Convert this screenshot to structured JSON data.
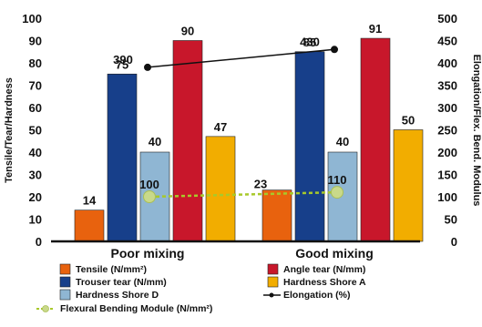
{
  "chart_data": {
    "type": "bar",
    "categories": [
      "Poor mixing",
      "Good mixing"
    ],
    "series": [
      {
        "name": "Tensile (N/mm²)",
        "values": [
          14,
          23
        ],
        "axis": "left",
        "color": "#e8620e"
      },
      {
        "name": "Trouser tear (N/mm)",
        "values": [
          75,
          85
        ],
        "axis": "left",
        "color": "#173f8a"
      },
      {
        "name": "Hardness Shore D",
        "values": [
          40,
          40
        ],
        "axis": "left",
        "color": "#8fb6d3"
      },
      {
        "name": "Angle tear (N/mm)",
        "values": [
          90,
          91
        ],
        "axis": "left",
        "color": "#c8172b"
      },
      {
        "name": "Hardness Shore A",
        "values": [
          47,
          50
        ],
        "axis": "left",
        "color": "#f2ad00"
      }
    ],
    "overlay_series": [
      {
        "name": "Elongation (%)",
        "type": "line",
        "values": [
          390,
          430
        ],
        "axis": "right",
        "color": "#111111"
      },
      {
        "name": "Flexural Bending Module (N/mm²)",
        "type": "line",
        "style": "dashed",
        "values": [
          100,
          110
        ],
        "axis": "right",
        "color": "#a8c92a",
        "marker_color": "#c9d98a"
      }
    ],
    "ylabel": "Tensile/Tear/Hardness",
    "y2label": "Elongation/Flex. Bend. Modulus",
    "ylim": [
      0,
      100
    ],
    "y2lim": [
      0,
      500
    ],
    "yticks": [
      "0",
      "10",
      "20",
      "30",
      "40",
      "50",
      "60",
      "70",
      "80",
      "90",
      "100"
    ],
    "y2ticks": [
      "0",
      "50",
      "100",
      "150",
      "200",
      "250",
      "300",
      "350",
      "400",
      "450",
      "500"
    ],
    "legend_position": "bottom",
    "legend_columns": [
      [
        "Tensile (N/mm²)",
        "Trouser tear (N/mm)",
        "Hardness Shore D"
      ],
      [
        "Angle tear (N/mm)",
        "Hardness Shore A",
        "Elongation (%)"
      ]
    ],
    "legend_last": "Flexural Bending Module (N/mm²)",
    "grid": false
  }
}
